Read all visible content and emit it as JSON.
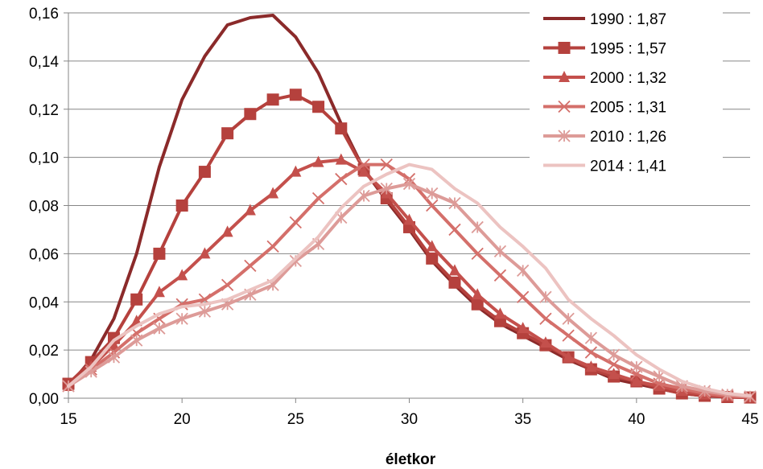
{
  "chart_data": {
    "type": "line",
    "title": "",
    "xlabel": "életkor",
    "ylabel": "",
    "xlim": [
      15,
      45
    ],
    "ylim": [
      0,
      0.16
    ],
    "x_ticks": [
      15,
      20,
      25,
      30,
      35,
      40,
      45
    ],
    "x_tick_labels": [
      "15",
      "20",
      "25",
      "30",
      "35",
      "40",
      "45"
    ],
    "y_ticks": [
      0,
      0.02,
      0.04,
      0.06,
      0.08,
      0.1,
      0.12,
      0.14,
      0.16
    ],
    "y_tick_labels": [
      "0,00",
      "0,02",
      "0,04",
      "0,06",
      "0,08",
      "0,10",
      "0,12",
      "0,14",
      "0,16"
    ],
    "grid": "horizontal",
    "legend_position": "top-right",
    "x": [
      15,
      16,
      17,
      18,
      19,
      20,
      21,
      22,
      23,
      24,
      25,
      26,
      27,
      28,
      29,
      30,
      31,
      32,
      33,
      34,
      35,
      36,
      37,
      38,
      39,
      40,
      41,
      42,
      43,
      44,
      45
    ],
    "series": [
      {
        "name": "1990 : 1,87",
        "color": "#8b2a2a",
        "marker": "none",
        "values": [
          0.005,
          0.016,
          0.033,
          0.06,
          0.096,
          0.124,
          0.142,
          0.155,
          0.158,
          0.159,
          0.15,
          0.135,
          0.114,
          0.095,
          0.082,
          0.07,
          0.057,
          0.047,
          0.038,
          0.031,
          0.026,
          0.021,
          0.016,
          0.012,
          0.008,
          0.006,
          0.004,
          0.002,
          0.001,
          0.0005,
          0.0003
        ]
      },
      {
        "name": "1995 : 1,57",
        "color": "#b5413d",
        "marker": "square",
        "values": [
          0.006,
          0.015,
          0.025,
          0.041,
          0.06,
          0.08,
          0.094,
          0.11,
          0.118,
          0.124,
          0.126,
          0.121,
          0.112,
          0.095,
          0.083,
          0.071,
          0.058,
          0.048,
          0.039,
          0.032,
          0.027,
          0.022,
          0.017,
          0.012,
          0.009,
          0.007,
          0.004,
          0.002,
          0.001,
          0.0005,
          0.0003
        ]
      },
      {
        "name": "2000 : 1,32",
        "color": "#c4504c",
        "marker": "triangle",
        "values": [
          0.005,
          0.013,
          0.022,
          0.032,
          0.044,
          0.051,
          0.06,
          0.069,
          0.078,
          0.085,
          0.094,
          0.098,
          0.099,
          0.094,
          0.085,
          0.074,
          0.063,
          0.053,
          0.043,
          0.035,
          0.029,
          0.023,
          0.017,
          0.013,
          0.01,
          0.007,
          0.005,
          0.003,
          0.0015,
          0.0007,
          0.0004
        ]
      },
      {
        "name": "2005 : 1,31",
        "color": "#d46f6a",
        "marker": "x",
        "values": [
          0.005,
          0.012,
          0.019,
          0.027,
          0.033,
          0.039,
          0.041,
          0.047,
          0.055,
          0.063,
          0.073,
          0.083,
          0.091,
          0.097,
          0.097,
          0.091,
          0.08,
          0.07,
          0.06,
          0.051,
          0.042,
          0.033,
          0.026,
          0.019,
          0.014,
          0.01,
          0.006,
          0.004,
          0.002,
          0.001,
          0.0005
        ]
      },
      {
        "name": "2010 : 1,26",
        "color": "#dd9b98",
        "marker": "asterisk",
        "values": [
          0.005,
          0.011,
          0.017,
          0.024,
          0.029,
          0.033,
          0.036,
          0.039,
          0.043,
          0.047,
          0.057,
          0.064,
          0.075,
          0.084,
          0.087,
          0.089,
          0.085,
          0.081,
          0.071,
          0.061,
          0.053,
          0.042,
          0.033,
          0.025,
          0.018,
          0.013,
          0.009,
          0.005,
          0.003,
          0.0015,
          0.0007
        ]
      },
      {
        "name": "2014 : 1,41",
        "color": "#ecc3c1",
        "marker": "none",
        "values": [
          0.005,
          0.013,
          0.024,
          0.03,
          0.035,
          0.038,
          0.039,
          0.041,
          0.045,
          0.049,
          0.058,
          0.067,
          0.079,
          0.088,
          0.093,
          0.097,
          0.095,
          0.087,
          0.081,
          0.071,
          0.063,
          0.054,
          0.041,
          0.033,
          0.026,
          0.018,
          0.012,
          0.007,
          0.004,
          0.002,
          0.001
        ]
      }
    ]
  }
}
